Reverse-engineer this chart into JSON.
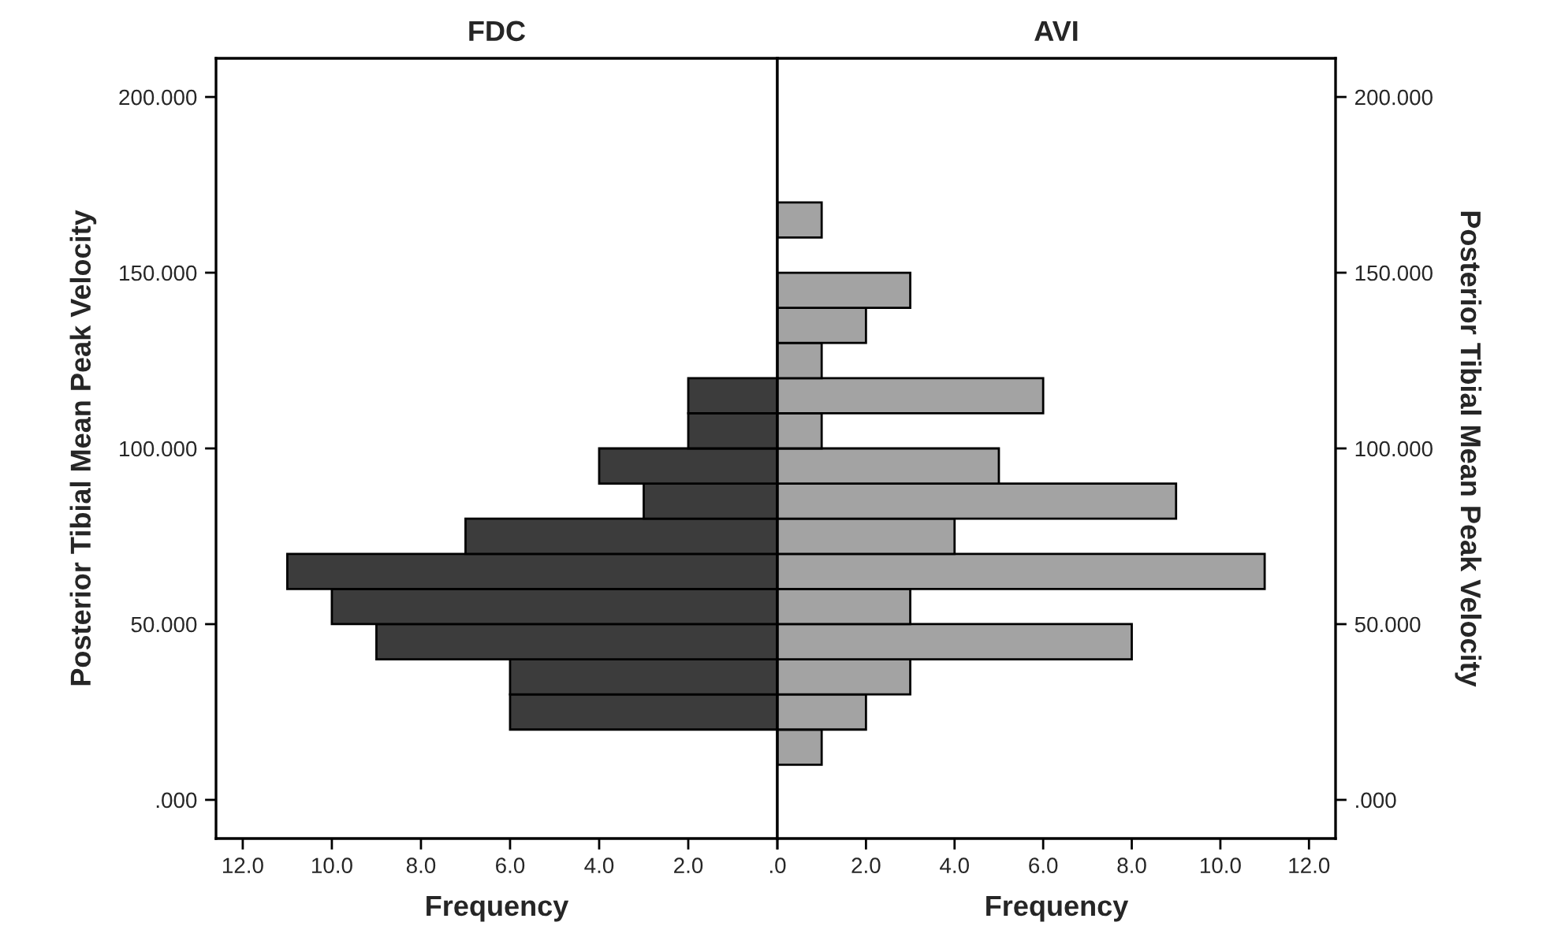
{
  "chart_data": [
    {
      "type": "histogram",
      "orientation": "horizontal",
      "title": "FDC",
      "xlabel": "Frequency",
      "ylabel": "Posterior Tibial Mean Peak Velocity",
      "bins": [
        20,
        30,
        40,
        50,
        60,
        70,
        80,
        90,
        100,
        110,
        120
      ],
      "values": [
        6,
        6,
        9,
        10,
        11,
        7,
        3,
        4,
        2,
        2
      ],
      "color": "#3c3c3c",
      "xlim": [
        12.6,
        0
      ],
      "xticks": [
        {
          "value": 12,
          "label": "12.0"
        },
        {
          "value": 10,
          "label": "10.0"
        },
        {
          "value": 8,
          "label": "8.0"
        },
        {
          "value": 6,
          "label": "6.0"
        },
        {
          "value": 4,
          "label": "4.0"
        },
        {
          "value": 2,
          "label": "2.0"
        },
        {
          "value": 0,
          "label": null
        }
      ],
      "ylim": [
        -11,
        211
      ],
      "yticks": [
        {
          "value": 0,
          "label": ".000"
        },
        {
          "value": 50,
          "label": "50.000"
        },
        {
          "value": 100,
          "label": "100.000"
        },
        {
          "value": 150,
          "label": "150.000"
        },
        {
          "value": 200,
          "label": "200.000"
        }
      ],
      "grid": false,
      "legend": false
    },
    {
      "type": "histogram",
      "orientation": "horizontal",
      "title": "AVI",
      "xlabel": "Frequency",
      "ylabel": "Posterior Tibial Mean Peak Velocity",
      "bins": [
        10,
        20,
        30,
        40,
        50,
        60,
        70,
        80,
        90,
        100,
        110,
        120,
        130,
        140,
        150,
        160,
        170
      ],
      "values": [
        1,
        2,
        3,
        8,
        3,
        11,
        4,
        9,
        5,
        1,
        6,
        1,
        2,
        3,
        0,
        1
      ],
      "color": "#a3a3a3",
      "xlim": [
        0,
        12.6
      ],
      "xticks": [
        {
          "value": 0,
          "label": ".0"
        },
        {
          "value": 2,
          "label": "2.0"
        },
        {
          "value": 4,
          "label": "4.0"
        },
        {
          "value": 6,
          "label": "6.0"
        },
        {
          "value": 8,
          "label": "8.0"
        },
        {
          "value": 10,
          "label": "10.0"
        },
        {
          "value": 12,
          "label": "12.0"
        }
      ],
      "ylim": [
        -11,
        211
      ],
      "yticks": [
        {
          "value": 0,
          "label": ".000"
        },
        {
          "value": 50,
          "label": "50.000"
        },
        {
          "value": 100,
          "label": "100.000"
        },
        {
          "value": 150,
          "label": "150.000"
        },
        {
          "value": 200,
          "label": "200.000"
        }
      ],
      "grid": false,
      "legend": false
    }
  ]
}
